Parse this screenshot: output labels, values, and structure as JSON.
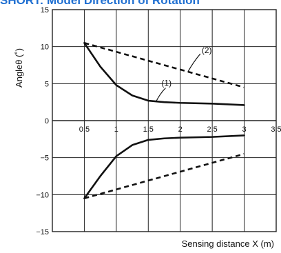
{
  "title": "SHORT: Model Direction of Rotation",
  "colors": {
    "title": "#1f6fd1",
    "line": "#111111",
    "grid": "#222222"
  },
  "chart_data": {
    "type": "line",
    "xlabel": "Sensing distance X (m)",
    "ylabel": "Angleθ (˚)",
    "xlim": [
      0,
      3.5
    ],
    "ylim": [
      -15,
      15
    ],
    "xticks": [
      "0.5",
      "1",
      "1.5",
      "2",
      "2.5",
      "3",
      "3.5"
    ],
    "xtick_values": [
      0.5,
      1,
      1.5,
      2,
      2.5,
      3,
      3.5
    ],
    "yticks": [
      "15",
      "10",
      "5",
      "0",
      "−5",
      "−10",
      "−15"
    ],
    "ytick_values": [
      15,
      10,
      5,
      0,
      -5,
      -10,
      -15
    ],
    "grid": true,
    "series": [
      {
        "name": "(1)",
        "style": "solid",
        "sign": 1,
        "x": [
          0.5,
          0.75,
          1.0,
          1.25,
          1.5,
          1.75,
          2.0,
          2.5,
          3.0
        ],
        "y": [
          10.5,
          7.3,
          4.8,
          3.4,
          2.7,
          2.5,
          2.4,
          2.3,
          2.1
        ]
      },
      {
        "name": "(1)",
        "style": "solid",
        "sign": -1,
        "x": [
          0.5,
          0.75,
          1.0,
          1.25,
          1.5,
          1.75,
          2.0,
          2.5,
          3.0
        ],
        "y": [
          -10.5,
          -7.5,
          -4.8,
          -3.3,
          -2.6,
          -2.4,
          -2.3,
          -2.2,
          -2.0
        ]
      },
      {
        "name": "(2)",
        "style": "dashed",
        "sign": 1,
        "x": [
          0.5,
          3.0
        ],
        "y": [
          10.5,
          4.5
        ]
      },
      {
        "name": "(2)",
        "style": "dashed",
        "sign": -1,
        "x": [
          0.5,
          3.0
        ],
        "y": [
          -10.5,
          -4.5
        ]
      }
    ],
    "annotations": [
      {
        "text": "(1)",
        "series": 0
      },
      {
        "text": "(2)",
        "series": 2
      }
    ]
  }
}
